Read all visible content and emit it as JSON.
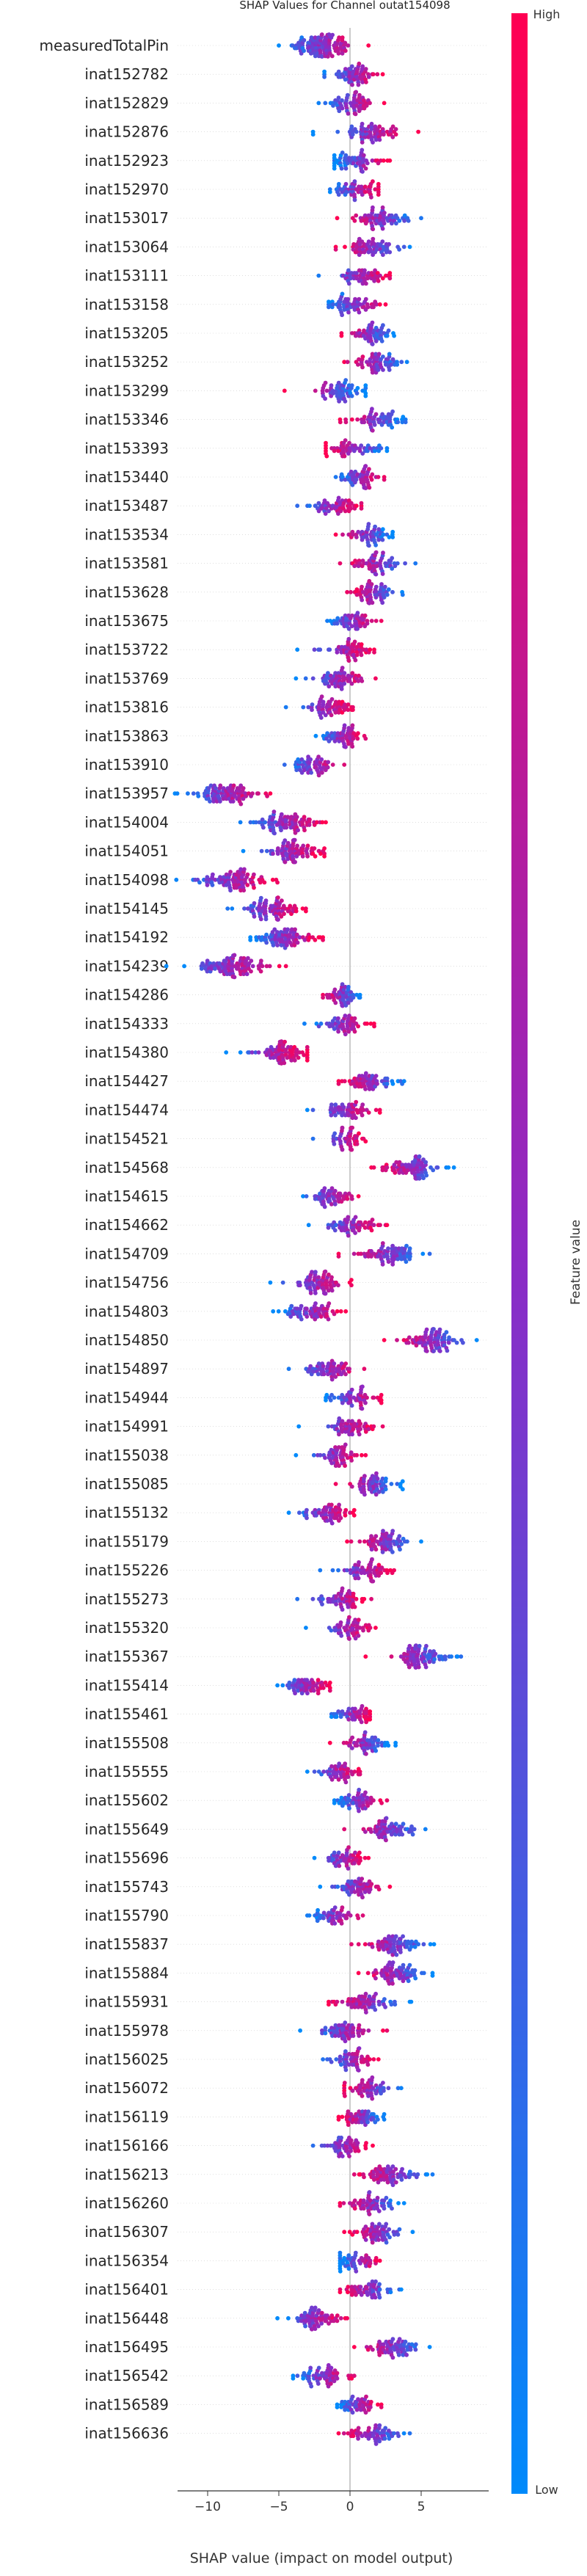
{
  "chart_data": {
    "type": "scatter",
    "subtype": "shap-beeswarm",
    "title": "SHAP Values for Channel outat154098",
    "xlabel": "SHAP value (impact on model output)",
    "xlim": [
      -13.5,
      9.8
    ],
    "xticks": [
      -10,
      -5,
      0,
      5
    ],
    "grid": false,
    "colorbar": {
      "label": "Feature value",
      "high_label": "High",
      "low_label": "Low",
      "low_color": "#008afb",
      "mid_color": "#8d2ac5",
      "high_color": "#ff0052"
    },
    "features": [
      {
        "name": "measuredTotalPin",
        "min": -5.0,
        "max": 1.3,
        "center": -2.0,
        "spread": 1.1,
        "low_side": "left",
        "count": 110
      },
      {
        "name": "inat152782",
        "min": -1.8,
        "max": 2.3,
        "center": 0.3,
        "spread": 0.9,
        "low_side": "left",
        "count": 60
      },
      {
        "name": "inat152829",
        "min": -2.2,
        "max": 2.4,
        "center": 0.2,
        "spread": 0.9,
        "low_side": "left",
        "count": 60
      },
      {
        "name": "inat152876",
        "min": -2.6,
        "max": 4.8,
        "center": 1.6,
        "spread": 1.0,
        "low_side": "left",
        "count": 65
      },
      {
        "name": "inat152923",
        "min": -1.1,
        "max": 2.8,
        "center": 0.4,
        "spread": 0.8,
        "low_side": "left",
        "count": 60
      },
      {
        "name": "inat152970",
        "min": -1.4,
        "max": 2.0,
        "center": 0.5,
        "spread": 0.8,
        "low_side": "left",
        "count": 55
      },
      {
        "name": "inat153017",
        "min": -0.9,
        "max": 5.0,
        "center": 2.3,
        "spread": 1.0,
        "low_side": "right",
        "count": 65
      },
      {
        "name": "inat153064",
        "min": -1.0,
        "max": 4.2,
        "center": 1.6,
        "spread": 1.0,
        "low_side": "right",
        "count": 60
      },
      {
        "name": "inat153111",
        "min": -2.2,
        "max": 2.8,
        "center": 1.0,
        "spread": 0.8,
        "low_side": "left",
        "count": 55
      },
      {
        "name": "inat153158",
        "min": -1.5,
        "max": 2.5,
        "center": 0.2,
        "spread": 0.9,
        "low_side": "left",
        "count": 60
      },
      {
        "name": "inat153205",
        "min": -0.6,
        "max": 3.1,
        "center": 1.5,
        "spread": 0.8,
        "low_side": "right",
        "count": 55
      },
      {
        "name": "inat153252",
        "min": -0.4,
        "max": 4.0,
        "center": 2.0,
        "spread": 0.9,
        "low_side": "right",
        "count": 60
      },
      {
        "name": "inat153299",
        "min": -4.6,
        "max": 1.1,
        "center": -0.6,
        "spread": 1.0,
        "low_side": "right",
        "count": 60
      },
      {
        "name": "inat153346",
        "min": -0.7,
        "max": 3.9,
        "center": 2.0,
        "spread": 0.9,
        "low_side": "right",
        "count": 60
      },
      {
        "name": "inat153393",
        "min": -1.7,
        "max": 2.6,
        "center": -0.2,
        "spread": 0.9,
        "low_side": "right",
        "count": 55
      },
      {
        "name": "inat153440",
        "min": -1.0,
        "max": 2.4,
        "center": 0.7,
        "spread": 0.8,
        "low_side": "left",
        "count": 55
      },
      {
        "name": "inat153487",
        "min": -3.7,
        "max": 0.8,
        "center": -1.0,
        "spread": 0.9,
        "low_side": "left",
        "count": 55
      },
      {
        "name": "inat153534",
        "min": -1.0,
        "max": 3.0,
        "center": 1.2,
        "spread": 0.8,
        "low_side": "right",
        "count": 55
      },
      {
        "name": "inat153581",
        "min": -0.7,
        "max": 4.6,
        "center": 2.0,
        "spread": 0.9,
        "low_side": "right",
        "count": 60
      },
      {
        "name": "inat153628",
        "min": -0.2,
        "max": 3.7,
        "center": 1.7,
        "spread": 0.8,
        "low_side": "right",
        "count": 60
      },
      {
        "name": "inat153675",
        "min": -1.6,
        "max": 2.2,
        "center": 0.2,
        "spread": 0.8,
        "low_side": "left",
        "count": 55
      },
      {
        "name": "inat153722",
        "min": -3.7,
        "max": 1.7,
        "center": 0.0,
        "spread": 0.8,
        "low_side": "left",
        "count": 55
      },
      {
        "name": "inat153769",
        "min": -3.8,
        "max": 1.8,
        "center": -0.6,
        "spread": 0.9,
        "low_side": "left",
        "count": 60
      },
      {
        "name": "inat153816",
        "min": -4.5,
        "max": 0.2,
        "center": -1.4,
        "spread": 0.8,
        "low_side": "left",
        "count": 60
      },
      {
        "name": "inat153863",
        "min": -2.4,
        "max": 1.1,
        "center": -0.4,
        "spread": 0.7,
        "low_side": "left",
        "count": 55
      },
      {
        "name": "inat153910",
        "min": -4.6,
        "max": -0.4,
        "center": -2.5,
        "spread": 0.8,
        "low_side": "left",
        "count": 55
      },
      {
        "name": "inat153957",
        "min": -12.3,
        "max": -5.6,
        "center": -8.8,
        "spread": 1.2,
        "low_side": "left",
        "count": 90
      },
      {
        "name": "inat154004",
        "min": -7.7,
        "max": -1.7,
        "center": -4.5,
        "spread": 1.1,
        "low_side": "left",
        "count": 85
      },
      {
        "name": "inat154051",
        "min": -7.5,
        "max": -1.8,
        "center": -4.0,
        "spread": 1.0,
        "low_side": "left",
        "count": 80
      },
      {
        "name": "inat154098",
        "min": -12.2,
        "max": -5.1,
        "center": -8.2,
        "spread": 1.2,
        "low_side": "left",
        "count": 90
      },
      {
        "name": "inat154145",
        "min": -8.6,
        "max": -3.1,
        "center": -5.4,
        "spread": 1.0,
        "low_side": "left",
        "count": 80
      },
      {
        "name": "inat154192",
        "min": -7.0,
        "max": -1.9,
        "center": -4.4,
        "spread": 1.0,
        "low_side": "left",
        "count": 80
      },
      {
        "name": "inat154239",
        "min": -12.9,
        "max": -4.5,
        "center": -8.2,
        "spread": 1.3,
        "low_side": "left",
        "count": 95
      },
      {
        "name": "inat154286",
        "min": -1.9,
        "max": 0.7,
        "center": -0.6,
        "spread": 0.6,
        "low_side": "right",
        "count": 50
      },
      {
        "name": "inat154333",
        "min": -3.2,
        "max": 1.7,
        "center": -0.5,
        "spread": 0.8,
        "low_side": "left",
        "count": 55
      },
      {
        "name": "inat154380",
        "min": -8.7,
        "max": -3.0,
        "center": -4.7,
        "spread": 1.0,
        "low_side": "left",
        "count": 75
      },
      {
        "name": "inat154427",
        "min": -0.8,
        "max": 3.8,
        "center": 1.3,
        "spread": 0.9,
        "low_side": "right",
        "count": 60
      },
      {
        "name": "inat154474",
        "min": -3.0,
        "max": 2.1,
        "center": -0.3,
        "spread": 0.9,
        "low_side": "left",
        "count": 55
      },
      {
        "name": "inat154521",
        "min": -2.6,
        "max": 1.1,
        "center": -0.3,
        "spread": 0.7,
        "low_side": "left",
        "count": 50
      },
      {
        "name": "inat154568",
        "min": 1.5,
        "max": 7.3,
        "center": 4.3,
        "spread": 1.0,
        "low_side": "right",
        "count": 80
      },
      {
        "name": "inat154615",
        "min": -3.3,
        "max": 0.6,
        "center": -1.2,
        "spread": 0.8,
        "low_side": "left",
        "count": 55
      },
      {
        "name": "inat154662",
        "min": -2.9,
        "max": 2.6,
        "center": 0.2,
        "spread": 0.9,
        "low_side": "left",
        "count": 60
      },
      {
        "name": "inat154709",
        "min": -0.8,
        "max": 5.6,
        "center": 2.5,
        "spread": 1.1,
        "low_side": "right",
        "count": 75
      },
      {
        "name": "inat154756",
        "min": -5.6,
        "max": 0.1,
        "center": -2.4,
        "spread": 1.0,
        "low_side": "left",
        "count": 70
      },
      {
        "name": "inat154803",
        "min": -5.4,
        "max": -0.3,
        "center": -2.6,
        "spread": 0.9,
        "low_side": "left",
        "count": 65
      },
      {
        "name": "inat154850",
        "min": 2.4,
        "max": 8.9,
        "center": 5.7,
        "spread": 1.1,
        "low_side": "right",
        "count": 85
      },
      {
        "name": "inat154897",
        "min": -4.3,
        "max": 1.0,
        "center": -1.4,
        "spread": 0.9,
        "low_side": "left",
        "count": 60
      },
      {
        "name": "inat154944",
        "min": -1.7,
        "max": 2.2,
        "center": 0.4,
        "spread": 0.8,
        "low_side": "left",
        "count": 55
      },
      {
        "name": "inat154991",
        "min": -3.6,
        "max": 2.3,
        "center": 0.0,
        "spread": 0.8,
        "low_side": "left",
        "count": 55
      },
      {
        "name": "inat155038",
        "min": -3.8,
        "max": 1.1,
        "center": -0.8,
        "spread": 0.8,
        "low_side": "left",
        "count": 55
      },
      {
        "name": "inat155085",
        "min": -1.0,
        "max": 3.7,
        "center": 1.6,
        "spread": 0.8,
        "low_side": "right",
        "count": 60
      },
      {
        "name": "inat155132",
        "min": -4.3,
        "max": 0.3,
        "center": -1.5,
        "spread": 0.9,
        "low_side": "left",
        "count": 60
      },
      {
        "name": "inat155179",
        "min": -0.2,
        "max": 5.0,
        "center": 2.5,
        "spread": 0.9,
        "low_side": "right",
        "count": 65
      },
      {
        "name": "inat155226",
        "min": -2.1,
        "max": 3.1,
        "center": 1.0,
        "spread": 0.9,
        "low_side": "left",
        "count": 60
      },
      {
        "name": "inat155273",
        "min": -3.7,
        "max": 1.5,
        "center": -0.4,
        "spread": 0.8,
        "low_side": "left",
        "count": 55
      },
      {
        "name": "inat155320",
        "min": -3.1,
        "max": 1.8,
        "center": 0.0,
        "spread": 0.8,
        "low_side": "left",
        "count": 55
      },
      {
        "name": "inat155367",
        "min": 1.1,
        "max": 7.8,
        "center": 5.1,
        "spread": 1.0,
        "low_side": "right",
        "count": 80
      },
      {
        "name": "inat155414",
        "min": -5.1,
        "max": -1.4,
        "center": -3.0,
        "spread": 0.8,
        "low_side": "left",
        "count": 60
      },
      {
        "name": "inat155461",
        "min": -1.3,
        "max": 1.4,
        "center": 0.4,
        "spread": 0.7,
        "low_side": "left",
        "count": 50
      },
      {
        "name": "inat155508",
        "min": -1.4,
        "max": 3.2,
        "center": 1.0,
        "spread": 0.8,
        "low_side": "right",
        "count": 55
      },
      {
        "name": "inat155555",
        "min": -3.0,
        "max": 0.7,
        "center": -0.8,
        "spread": 0.7,
        "low_side": "left",
        "count": 50
      },
      {
        "name": "inat155602",
        "min": -1.1,
        "max": 2.6,
        "center": 0.6,
        "spread": 0.8,
        "low_side": "left",
        "count": 55
      },
      {
        "name": "inat155649",
        "min": -0.4,
        "max": 5.3,
        "center": 2.6,
        "spread": 0.9,
        "low_side": "right",
        "count": 65
      },
      {
        "name": "inat155696",
        "min": -2.5,
        "max": 1.3,
        "center": -0.4,
        "spread": 0.7,
        "low_side": "left",
        "count": 50
      },
      {
        "name": "inat155743",
        "min": -2.1,
        "max": 2.8,
        "center": 0.6,
        "spread": 0.8,
        "low_side": "left",
        "count": 55
      },
      {
        "name": "inat155790",
        "min": -3.0,
        "max": 0.9,
        "center": -1.1,
        "spread": 0.7,
        "low_side": "left",
        "count": 50
      },
      {
        "name": "inat155837",
        "min": 0.1,
        "max": 5.9,
        "center": 3.1,
        "spread": 1.0,
        "low_side": "right",
        "count": 70
      },
      {
        "name": "inat155884",
        "min": 0.6,
        "max": 5.8,
        "center": 3.2,
        "spread": 1.0,
        "low_side": "right",
        "count": 70
      },
      {
        "name": "inat155931",
        "min": -1.5,
        "max": 4.3,
        "center": 1.2,
        "spread": 1.0,
        "low_side": "right",
        "count": 65
      },
      {
        "name": "inat155978",
        "min": -3.5,
        "max": 2.6,
        "center": -0.3,
        "spread": 0.9,
        "low_side": "left",
        "count": 60
      },
      {
        "name": "inat156025",
        "min": -1.9,
        "max": 2.0,
        "center": 0.4,
        "spread": 0.8,
        "low_side": "left",
        "count": 55
      },
      {
        "name": "inat156072",
        "min": -0.4,
        "max": 3.6,
        "center": 1.3,
        "spread": 0.8,
        "low_side": "right",
        "count": 55
      },
      {
        "name": "inat156119",
        "min": -0.8,
        "max": 2.4,
        "center": 0.8,
        "spread": 0.7,
        "low_side": "right",
        "count": 50
      },
      {
        "name": "inat156166",
        "min": -2.6,
        "max": 1.6,
        "center": -0.4,
        "spread": 0.7,
        "low_side": "left",
        "count": 55
      },
      {
        "name": "inat156213",
        "min": 0.3,
        "max": 5.8,
        "center": 2.8,
        "spread": 1.0,
        "low_side": "right",
        "count": 70
      },
      {
        "name": "inat156260",
        "min": -0.7,
        "max": 3.8,
        "center": 1.5,
        "spread": 0.9,
        "low_side": "right",
        "count": 60
      },
      {
        "name": "inat156307",
        "min": -0.4,
        "max": 4.4,
        "center": 1.8,
        "spread": 0.9,
        "low_side": "right",
        "count": 60
      },
      {
        "name": "inat156354",
        "min": -0.7,
        "max": 2.1,
        "center": 0.5,
        "spread": 0.7,
        "low_side": "left",
        "count": 50
      },
      {
        "name": "inat156401",
        "min": -0.7,
        "max": 3.6,
        "center": 1.3,
        "spread": 0.8,
        "low_side": "right",
        "count": 55
      },
      {
        "name": "inat156448",
        "min": -5.1,
        "max": -0.2,
        "center": -2.3,
        "spread": 0.9,
        "low_side": "left",
        "count": 65
      },
      {
        "name": "inat156495",
        "min": 0.3,
        "max": 5.6,
        "center": 3.0,
        "spread": 0.9,
        "low_side": "right",
        "count": 65
      },
      {
        "name": "inat156542",
        "min": -4.0,
        "max": 0.3,
        "center": -1.9,
        "spread": 0.8,
        "low_side": "left",
        "count": 60
      },
      {
        "name": "inat156589",
        "min": -0.9,
        "max": 2.2,
        "center": 0.5,
        "spread": 0.7,
        "low_side": "left",
        "count": 50
      },
      {
        "name": "inat156636",
        "min": -0.8,
        "max": 4.2,
        "center": 1.6,
        "spread": 0.9,
        "low_side": "right",
        "count": 60
      }
    ]
  }
}
